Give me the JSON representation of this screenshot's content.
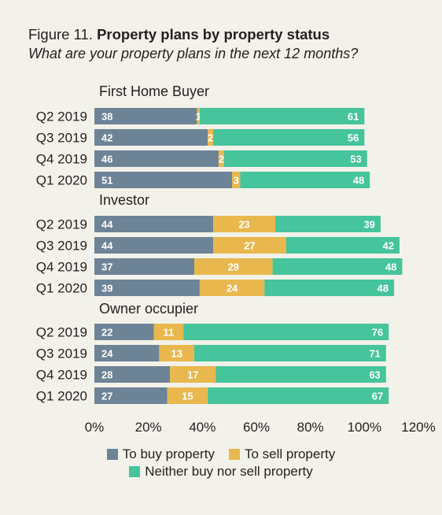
{
  "title_prefix": "Figure 11.",
  "title_main": "Property plans by property status",
  "subtitle": "What are your property plans in the next 12 months?",
  "colors": {
    "buy": "#6d8396",
    "sell": "#e8b84e",
    "neither": "#46c49c",
    "text": "#231f20",
    "background": "#f3f2ea"
  },
  "chart_data": {
    "type": "bar",
    "orientation": "horizontal",
    "stacked": true,
    "xlim": [
      0,
      120
    ],
    "x_ticks": [
      "0%",
      "20%",
      "40%",
      "60%",
      "80%",
      "100%",
      "120%"
    ],
    "grid": false,
    "legend_position": "bottom",
    "series_names": [
      "To buy property",
      "To sell property",
      "Neither buy nor sell property"
    ],
    "groups": [
      {
        "name": "First Home Buyer",
        "rows": [
          {
            "label": "Q2 2019",
            "values": [
              38,
              1,
              61
            ]
          },
          {
            "label": "Q3 2019",
            "values": [
              42,
              2,
              56
            ]
          },
          {
            "label": "Q4 2019",
            "values": [
              46,
              2,
              53
            ]
          },
          {
            "label": "Q1 2020",
            "values": [
              51,
              3,
              48
            ]
          }
        ]
      },
      {
        "name": "Investor",
        "rows": [
          {
            "label": "Q2 2019",
            "values": [
              44,
              23,
              39
            ]
          },
          {
            "label": "Q3 2019",
            "values": [
              44,
              27,
              42
            ]
          },
          {
            "label": "Q4 2019",
            "values": [
              37,
              29,
              48
            ]
          },
          {
            "label": "Q1 2020",
            "values": [
              39,
              24,
              48
            ]
          }
        ]
      },
      {
        "name": "Owner occupier",
        "rows": [
          {
            "label": "Q2 2019",
            "values": [
              22,
              11,
              76
            ]
          },
          {
            "label": "Q3 2019",
            "values": [
              24,
              13,
              71
            ]
          },
          {
            "label": "Q4 2019",
            "values": [
              28,
              17,
              63
            ]
          },
          {
            "label": "Q1 2020",
            "values": [
              27,
              15,
              67
            ]
          }
        ]
      }
    ]
  }
}
